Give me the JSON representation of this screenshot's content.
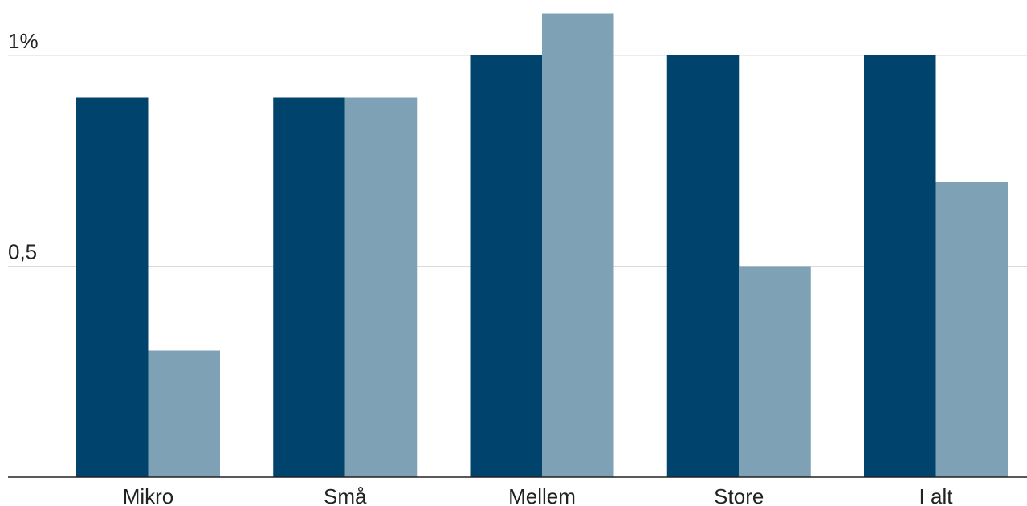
{
  "chart_data": {
    "type": "bar",
    "categories": [
      "Mikro",
      "Små",
      "Mellem",
      "Store",
      "I alt"
    ],
    "series": [
      {
        "values": [
          0.9,
          0.9,
          1.0,
          1.0,
          1.0
        ],
        "color": "#00436c"
      },
      {
        "values": [
          0.3,
          0.9,
          1.1,
          0.5,
          0.7
        ],
        "color": "#7fa1b6"
      }
    ],
    "yticks": [
      {
        "value": 0.5,
        "label": "0,5"
      },
      {
        "value": 1.0,
        "label": "1%"
      }
    ],
    "ylim": [
      0,
      1.1
    ],
    "grid": true,
    "xlabel": "",
    "ylabel": ""
  }
}
